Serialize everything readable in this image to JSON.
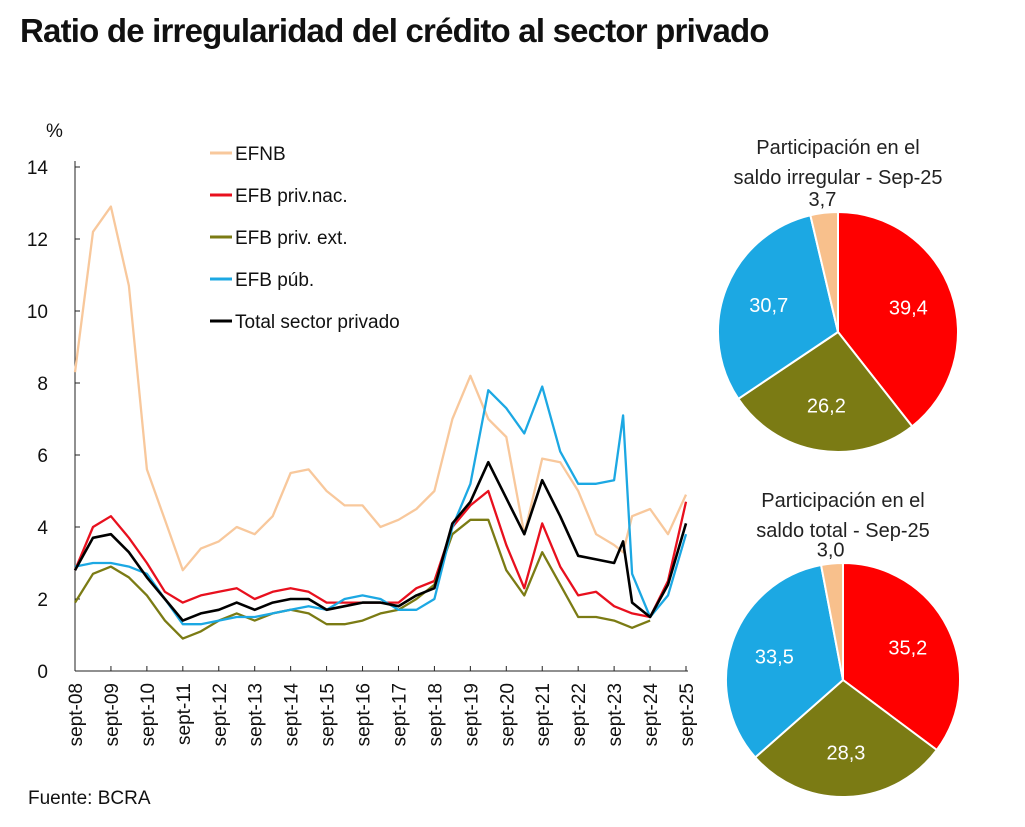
{
  "title": "Ratio de irregularidad del crédito al sector privado",
  "source": "Fuente: BCRA",
  "chart_data": [
    {
      "type": "line",
      "ylabel": "%",
      "ylim": [
        0,
        14
      ],
      "yticks": [
        "0",
        "2",
        "4",
        "6",
        "8",
        "10",
        "12",
        "14"
      ],
      "xticks": [
        "sept-08",
        "sept-09",
        "sept-10",
        "sept-11",
        "sept-12",
        "sept-13",
        "sept-14",
        "sept-15",
        "sept-16",
        "sept-17",
        "sept-18",
        "sept-19",
        "sept-20",
        "sept-21",
        "sept-22",
        "sept-23",
        "sept-24",
        "sept-25"
      ],
      "legend_position": "top-center",
      "x": [
        "2008-09",
        "2009-03",
        "2009-09",
        "2010-03",
        "2010-09",
        "2011-03",
        "2011-09",
        "2012-03",
        "2012-09",
        "2013-03",
        "2013-09",
        "2014-03",
        "2014-09",
        "2015-03",
        "2015-09",
        "2016-03",
        "2016-09",
        "2017-03",
        "2017-09",
        "2018-03",
        "2018-09",
        "2019-03",
        "2019-09",
        "2020-03",
        "2020-09",
        "2021-03",
        "2021-09",
        "2022-03",
        "2022-09",
        "2023-03",
        "2023-09",
        "2023-12",
        "2024-03",
        "2024-09",
        "2025-03",
        "2025-09"
      ],
      "series": [
        {
          "name": "EFNB",
          "color": "#f8c89c",
          "values": [
            8.3,
            12.2,
            12.9,
            10.7,
            5.6,
            4.2,
            2.8,
            3.4,
            3.6,
            4.0,
            3.8,
            4.3,
            5.5,
            5.6,
            5.0,
            4.6,
            4.6,
            4.0,
            4.2,
            4.5,
            5.0,
            7.0,
            8.2,
            7.0,
            6.5,
            3.8,
            5.9,
            5.8,
            5.0,
            3.8,
            3.5,
            3.3,
            4.3,
            4.5,
            3.8,
            4.9
          ]
        },
        {
          "name": "EFB priv.nac.",
          "color": "#e8101e",
          "values": [
            2.8,
            4.0,
            4.3,
            3.7,
            3.0,
            2.2,
            1.9,
            2.1,
            2.2,
            2.3,
            2.0,
            2.2,
            2.3,
            2.2,
            1.9,
            1.9,
            1.9,
            1.9,
            1.9,
            2.3,
            2.5,
            4.0,
            4.6,
            5.0,
            3.5,
            2.3,
            4.1,
            2.9,
            2.1,
            2.2,
            1.8,
            1.7,
            1.6,
            1.5,
            2.5,
            4.7
          ]
        },
        {
          "name": "EFB priv. ext.",
          "color": "#7b7b14",
          "values": [
            1.9,
            2.7,
            2.9,
            2.6,
            2.1,
            1.4,
            0.9,
            1.1,
            1.4,
            1.6,
            1.4,
            1.6,
            1.7,
            1.6,
            1.3,
            1.3,
            1.4,
            1.6,
            1.7,
            2.0,
            2.4,
            3.8,
            4.2,
            4.2,
            2.8,
            2.1,
            3.3,
            2.4,
            1.5,
            1.5,
            1.4,
            1.3,
            1.2,
            1.4,
            null,
            null
          ]
        },
        {
          "name": "EFB púb.",
          "color": "#1ca8e3",
          "values": [
            2.9,
            3.0,
            3.0,
            2.9,
            2.7,
            2.0,
            1.3,
            1.3,
            1.4,
            1.5,
            1.5,
            1.6,
            1.7,
            1.8,
            1.7,
            2.0,
            2.1,
            2.0,
            1.7,
            1.7,
            2.0,
            4.0,
            5.2,
            7.8,
            7.3,
            6.6,
            7.9,
            6.1,
            5.2,
            5.2,
            5.3,
            7.1,
            2.7,
            1.5,
            2.1,
            3.8
          ]
        },
        {
          "name": "Total sector privado",
          "color": "#000000",
          "values": [
            2.8,
            3.7,
            3.8,
            3.3,
            2.6,
            2.0,
            1.4,
            1.6,
            1.7,
            1.9,
            1.7,
            1.9,
            2.0,
            2.0,
            1.7,
            1.8,
            1.9,
            1.9,
            1.8,
            2.1,
            2.3,
            4.1,
            4.7,
            5.8,
            4.8,
            3.8,
            5.3,
            4.3,
            3.2,
            3.1,
            3.0,
            3.6,
            1.9,
            1.5,
            2.4,
            4.1
          ]
        }
      ]
    },
    {
      "type": "pie",
      "title_lines": [
        "Participación en el",
        "saldo irregular - Sep-25"
      ],
      "slices": [
        {
          "label": "39,4",
          "value": 39.4,
          "color": "#ff0000"
        },
        {
          "label": "26,2",
          "value": 26.2,
          "color": "#7b7b14"
        },
        {
          "label": "30,7",
          "value": 30.7,
          "color": "#1ca8e3"
        },
        {
          "label": "3,7",
          "value": 3.7,
          "color": "#f8c08c"
        }
      ]
    },
    {
      "type": "pie",
      "title_lines": [
        "Participación en el",
        "saldo total - Sep-25"
      ],
      "slices": [
        {
          "label": "35,2",
          "value": 35.2,
          "color": "#ff0000"
        },
        {
          "label": "28,3",
          "value": 28.3,
          "color": "#7b7b14"
        },
        {
          "label": "33,5",
          "value": 33.5,
          "color": "#1ca8e3"
        },
        {
          "label": "3,0",
          "value": 3.0,
          "color": "#f8c08c"
        }
      ]
    }
  ]
}
